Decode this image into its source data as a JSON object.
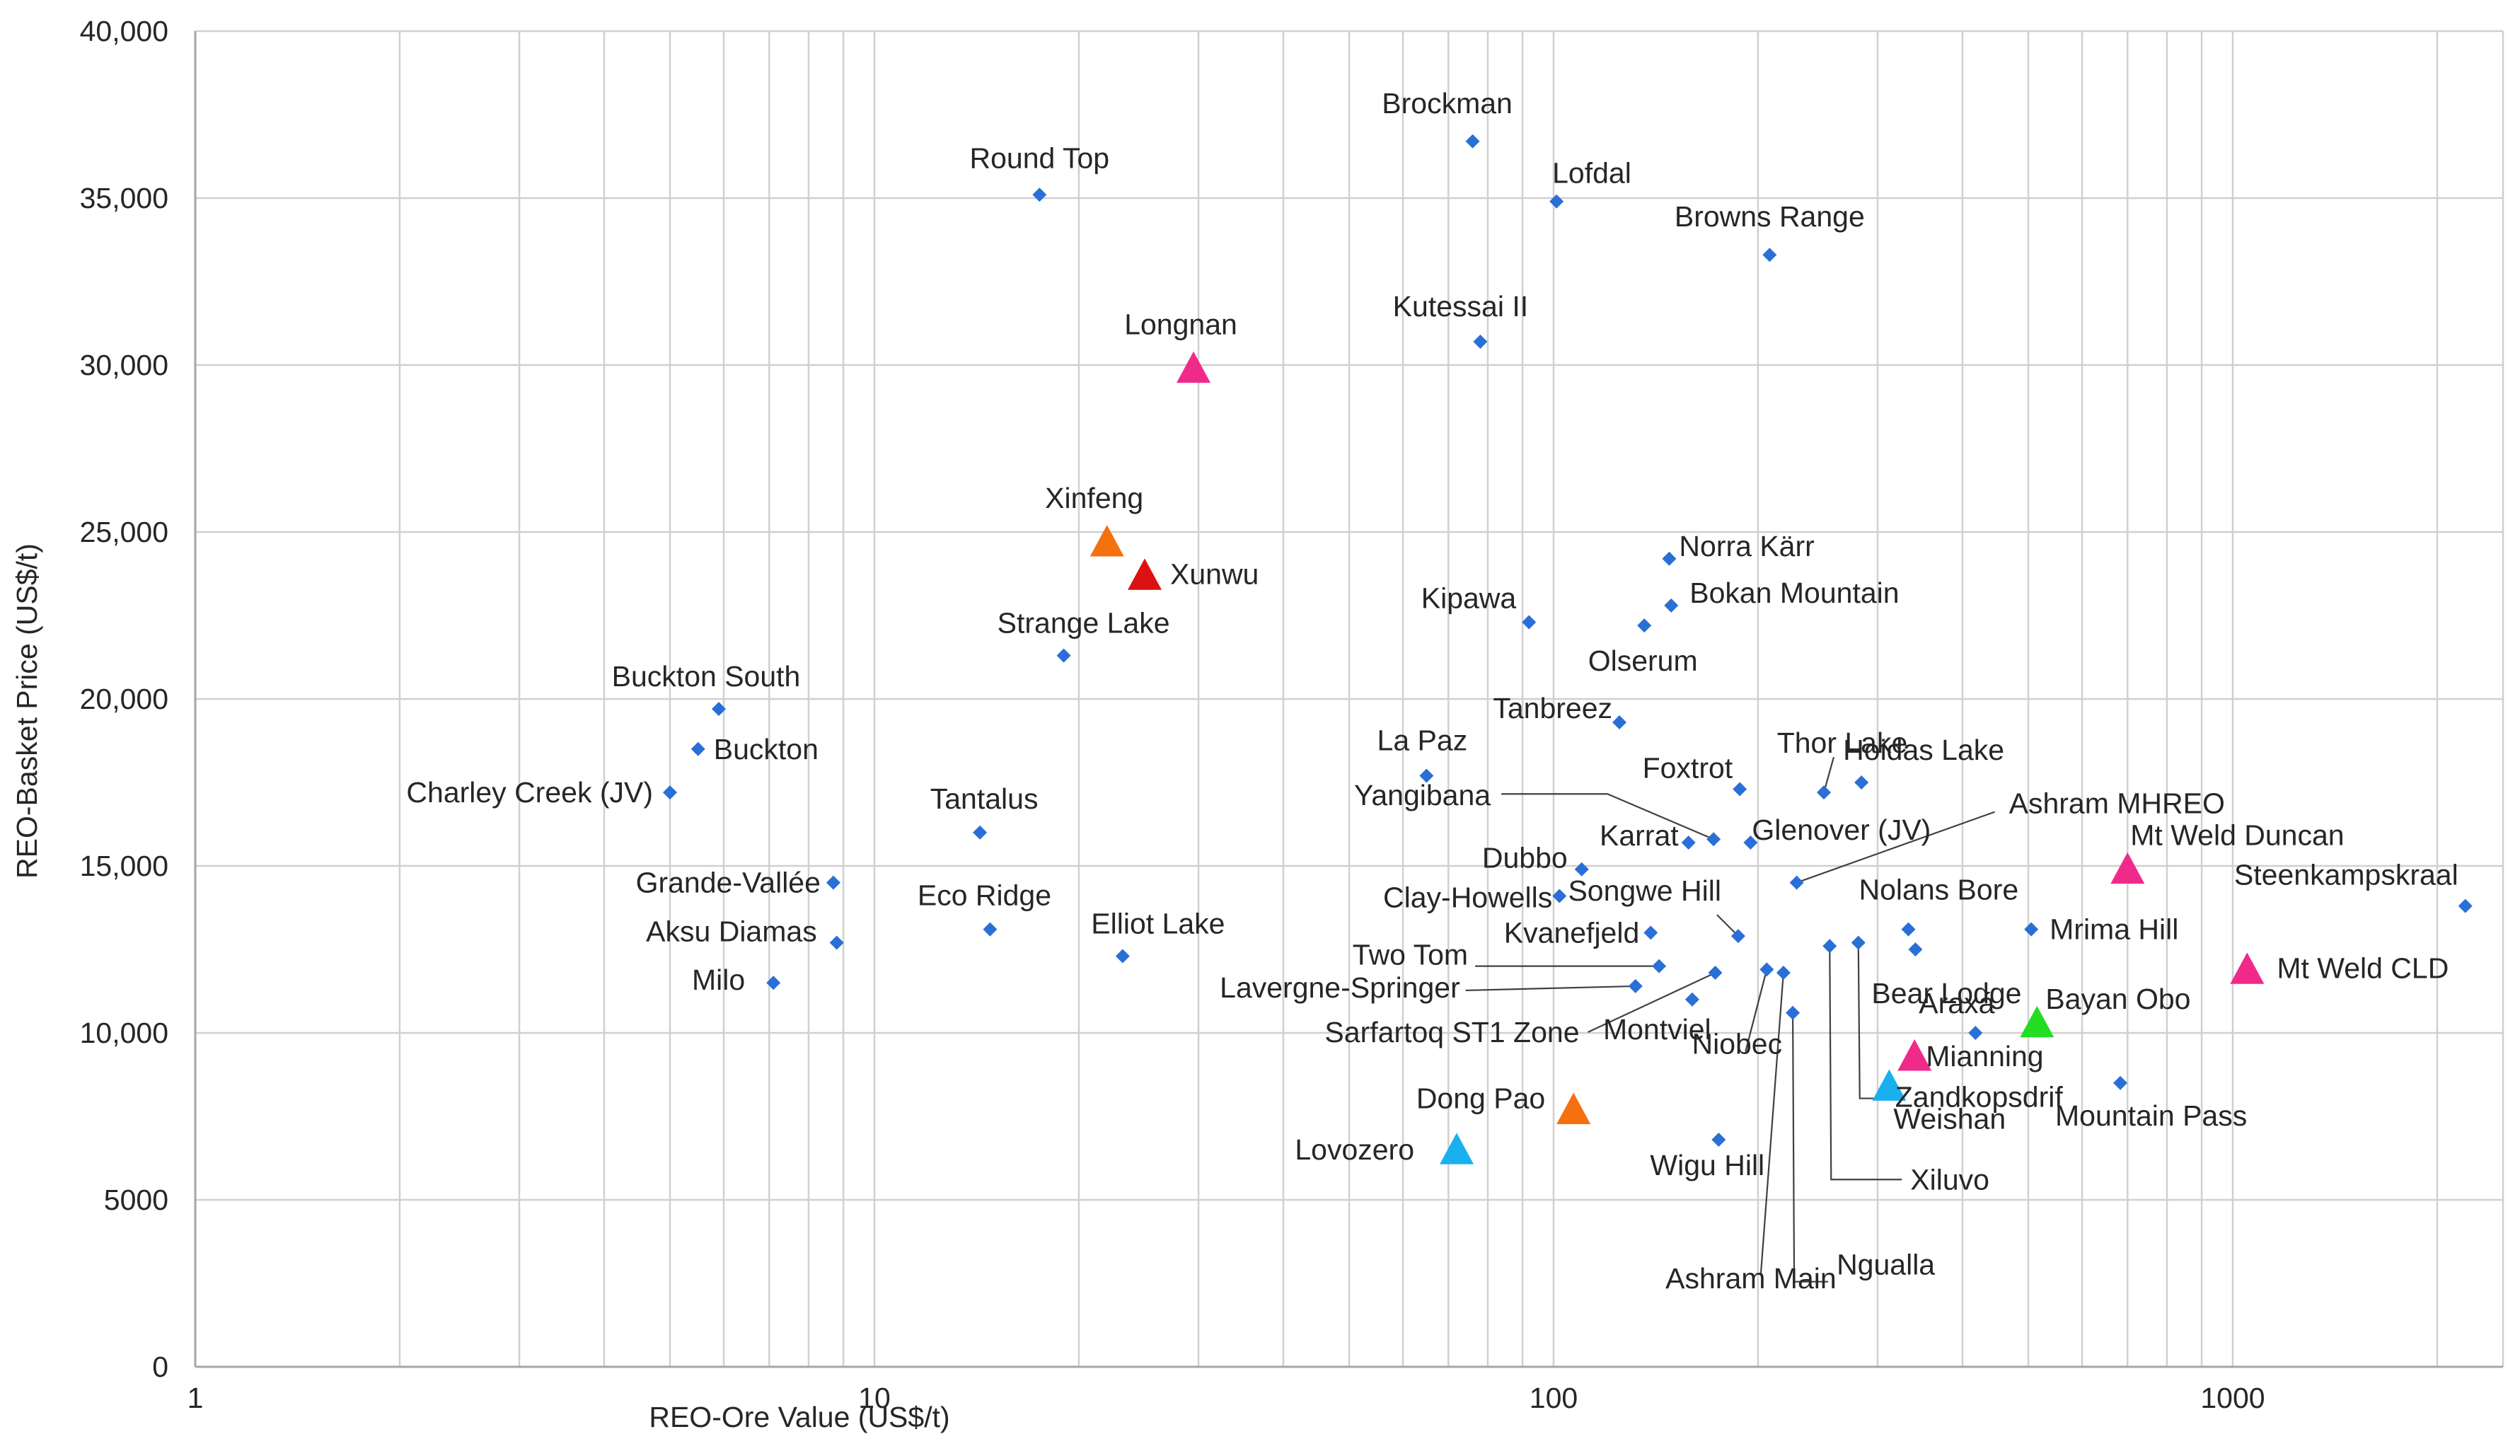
{
  "chart_data": {
    "type": "scatter",
    "title": "",
    "xlabel": "REO-Ore Value (US$/t)",
    "ylabel": "REO-Basket Price (US$/t)",
    "xscale": "log",
    "xlim": [
      1,
      2500
    ],
    "ylim": [
      0,
      40000
    ],
    "x_ticks": [
      1,
      10,
      100,
      1000
    ],
    "x_tick_labels": [
      "1",
      "10",
      "100",
      "1000"
    ],
    "y_ticks": [
      0,
      5000,
      10000,
      15000,
      20000,
      25000,
      30000,
      35000,
      40000
    ],
    "y_tick_labels": [
      "0",
      "5000",
      "10,000",
      "15,000",
      "20,000",
      "25,000",
      "30,000",
      "35,000",
      "40,000"
    ],
    "grid": true,
    "legend": "none",
    "colors": {
      "diamond": "#2a6fd6",
      "magenta": "#f02a8a",
      "orange": "#f5700e",
      "red": "#dd1111",
      "cyan": "#1ab0ee",
      "green": "#22dd22"
    },
    "points": [
      {
        "name": "Round Top",
        "x": 17.5,
        "y": 35100,
        "marker": "diamond"
      },
      {
        "name": "Brockman",
        "x": 76,
        "y": 36700,
        "marker": "diamond"
      },
      {
        "name": "Lofdal",
        "x": 101,
        "y": 34900,
        "marker": "diamond"
      },
      {
        "name": "Browns Range",
        "x": 208,
        "y": 33300,
        "marker": "diamond"
      },
      {
        "name": "Kutessai II",
        "x": 78,
        "y": 30700,
        "marker": "diamond"
      },
      {
        "name": "Longnan",
        "x": 29.5,
        "y": 29900,
        "marker": "triangle",
        "color": "magenta"
      },
      {
        "name": "Xinfeng",
        "x": 22,
        "y": 24700,
        "marker": "triangle",
        "color": "orange"
      },
      {
        "name": "Xunwu",
        "x": 25,
        "y": 23700,
        "marker": "triangle",
        "color": "red"
      },
      {
        "name": "Strange Lake",
        "x": 19,
        "y": 21300,
        "marker": "diamond"
      },
      {
        "name": "Norra Kärr",
        "x": 148,
        "y": 24200,
        "marker": "diamond"
      },
      {
        "name": "Kipawa",
        "x": 92,
        "y": 22300,
        "marker": "diamond"
      },
      {
        "name": "Bokan Mountain",
        "x": 149,
        "y": 22800,
        "marker": "diamond"
      },
      {
        "name": "Olserum",
        "x": 136,
        "y": 22200,
        "marker": "diamond"
      },
      {
        "name": "Buckton South",
        "x": 5.9,
        "y": 19700,
        "marker": "diamond"
      },
      {
        "name": "Buckton",
        "x": 5.5,
        "y": 18500,
        "marker": "diamond"
      },
      {
        "name": "Charley Creek (JV)",
        "x": 5,
        "y": 17200,
        "marker": "diamond"
      },
      {
        "name": "Tanbreez",
        "x": 125,
        "y": 19300,
        "marker": "diamond"
      },
      {
        "name": "Thor Lake",
        "x": 250,
        "y": 17200,
        "marker": "diamond"
      },
      {
        "name": "Hoidas Lake",
        "x": 284,
        "y": 17500,
        "marker": "diamond"
      },
      {
        "name": "La Paz",
        "x": 65,
        "y": 17700,
        "marker": "diamond"
      },
      {
        "name": "Foxtrot",
        "x": 188,
        "y": 17300,
        "marker": "diamond"
      },
      {
        "name": "Yangibana",
        "x": 172,
        "y": 15800,
        "marker": "diamond"
      },
      {
        "name": "Karrat",
        "x": 158,
        "y": 15700,
        "marker": "diamond"
      },
      {
        "name": "Glenover (JV)",
        "x": 195,
        "y": 15700,
        "marker": "diamond"
      },
      {
        "name": "Tantalus",
        "x": 14.3,
        "y": 16000,
        "marker": "diamond"
      },
      {
        "name": "Ashram MHREO",
        "x": 228,
        "y": 14500,
        "marker": "diamond"
      },
      {
        "name": "Mt Weld Duncan",
        "x": 700,
        "y": 14900,
        "marker": "triangle",
        "color": "magenta"
      },
      {
        "name": "Steenkampskraal",
        "x": 2200,
        "y": 13800,
        "marker": "diamond"
      },
      {
        "name": "Dubbo",
        "x": 110,
        "y": 14900,
        "marker": "diamond"
      },
      {
        "name": "Clay-Howells",
        "x": 102,
        "y": 14100,
        "marker": "diamond"
      },
      {
        "name": "Songwe Hill",
        "x": 187,
        "y": 12900,
        "marker": "diamond"
      },
      {
        "name": "Grande-Vallée",
        "x": 8.7,
        "y": 14500,
        "marker": "diamond"
      },
      {
        "name": "Eco Ridge",
        "x": 14.8,
        "y": 13100,
        "marker": "diamond"
      },
      {
        "name": "Aksu Diamas",
        "x": 8.8,
        "y": 12700,
        "marker": "diamond"
      },
      {
        "name": "Elliot Lake",
        "x": 23.2,
        "y": 12300,
        "marker": "diamond"
      },
      {
        "name": "Milo",
        "x": 7.1,
        "y": 11500,
        "marker": "diamond"
      },
      {
        "name": "Nolans Bore",
        "x": 333,
        "y": 13100,
        "marker": "diamond"
      },
      {
        "name": "Mrima Hill",
        "x": 505,
        "y": 13100,
        "marker": "diamond"
      },
      {
        "name": "Kvanefjeld",
        "x": 139,
        "y": 13000,
        "marker": "diamond"
      },
      {
        "name": "Two Tom",
        "x": 143,
        "y": 12000,
        "marker": "diamond"
      },
      {
        "name": "Lavergne-Springer",
        "x": 132,
        "y": 11400,
        "marker": "diamond"
      },
      {
        "name": "Sarfartoq ST1 Zone",
        "x": 173,
        "y": 11800,
        "marker": "diamond"
      },
      {
        "name": "Bear Lodge",
        "x": 341,
        "y": 12500,
        "marker": "diamond"
      },
      {
        "name": "Mt Weld CLD",
        "x": 1050,
        "y": 11900,
        "marker": "triangle",
        "color": "magenta"
      },
      {
        "name": "Montviel",
        "x": 160,
        "y": 11000,
        "marker": "diamond"
      },
      {
        "name": "Niobec",
        "x": 206,
        "y": 11900,
        "marker": "diamond"
      },
      {
        "name": "Ashram Main",
        "x": 218,
        "y": 11800,
        "marker": "diamond"
      },
      {
        "name": "Ngualla",
        "x": 225,
        "y": 10600,
        "marker": "diamond"
      },
      {
        "name": "Xiluvo",
        "x": 255,
        "y": 12600,
        "marker": "diamond"
      },
      {
        "name": "Zandkopsdrif",
        "x": 281,
        "y": 12700,
        "marker": "diamond"
      },
      {
        "name": "Araxá",
        "x": 418,
        "y": 10000,
        "marker": "diamond"
      },
      {
        "name": "Bayan Obo",
        "x": 515,
        "y": 10300,
        "marker": "triangle",
        "color": "green"
      },
      {
        "name": "Mianning",
        "x": 340,
        "y": 9300,
        "marker": "triangle",
        "color": "magenta"
      },
      {
        "name": "Weishan",
        "x": 312,
        "y": 8400,
        "marker": "triangle",
        "color": "cyan"
      },
      {
        "name": "Mountain Pass",
        "x": 683,
        "y": 8500,
        "marker": "diamond"
      },
      {
        "name": "Dong Pao",
        "x": 107,
        "y": 7700,
        "marker": "triangle",
        "color": "orange"
      },
      {
        "name": "Lovozero",
        "x": 72,
        "y": 6500,
        "marker": "triangle",
        "color": "cyan"
      },
      {
        "name": "Wigu Hill",
        "x": 175,
        "y": 6800,
        "marker": "diamond"
      }
    ]
  }
}
